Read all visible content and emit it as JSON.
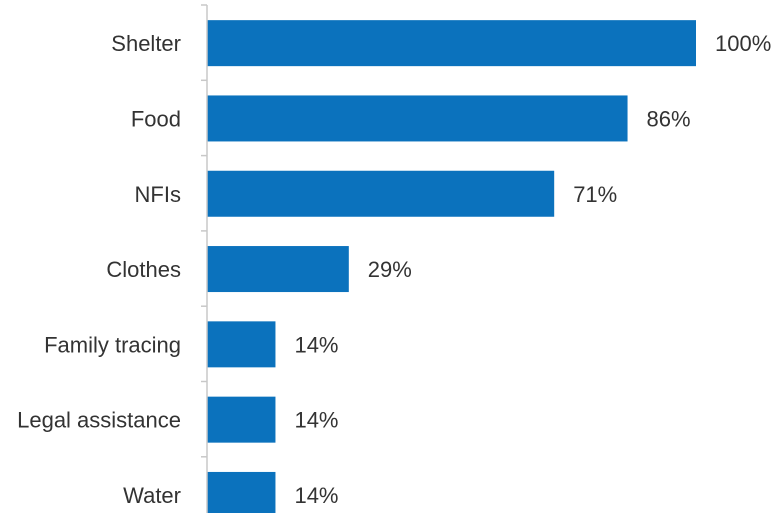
{
  "chart_data": {
    "type": "bar",
    "orientation": "horizontal",
    "categories": [
      "Shelter",
      "Food",
      "NFIs",
      "Clothes",
      "Family tracing",
      "Legal assistance",
      "Water"
    ],
    "values": [
      100,
      86,
      71,
      29,
      14,
      14,
      14
    ],
    "data_labels": [
      "100%",
      "86%",
      "71%",
      "29%",
      "14%",
      "14%",
      "14%"
    ],
    "unit": "%",
    "xlim": [
      0,
      100
    ],
    "grid": false,
    "legend": "none",
    "title": "",
    "xlabel": "",
    "ylabel": "",
    "bar_color": "#0b72bd",
    "axis_color": "#c8c8c8",
    "text_color": "#333333"
  }
}
